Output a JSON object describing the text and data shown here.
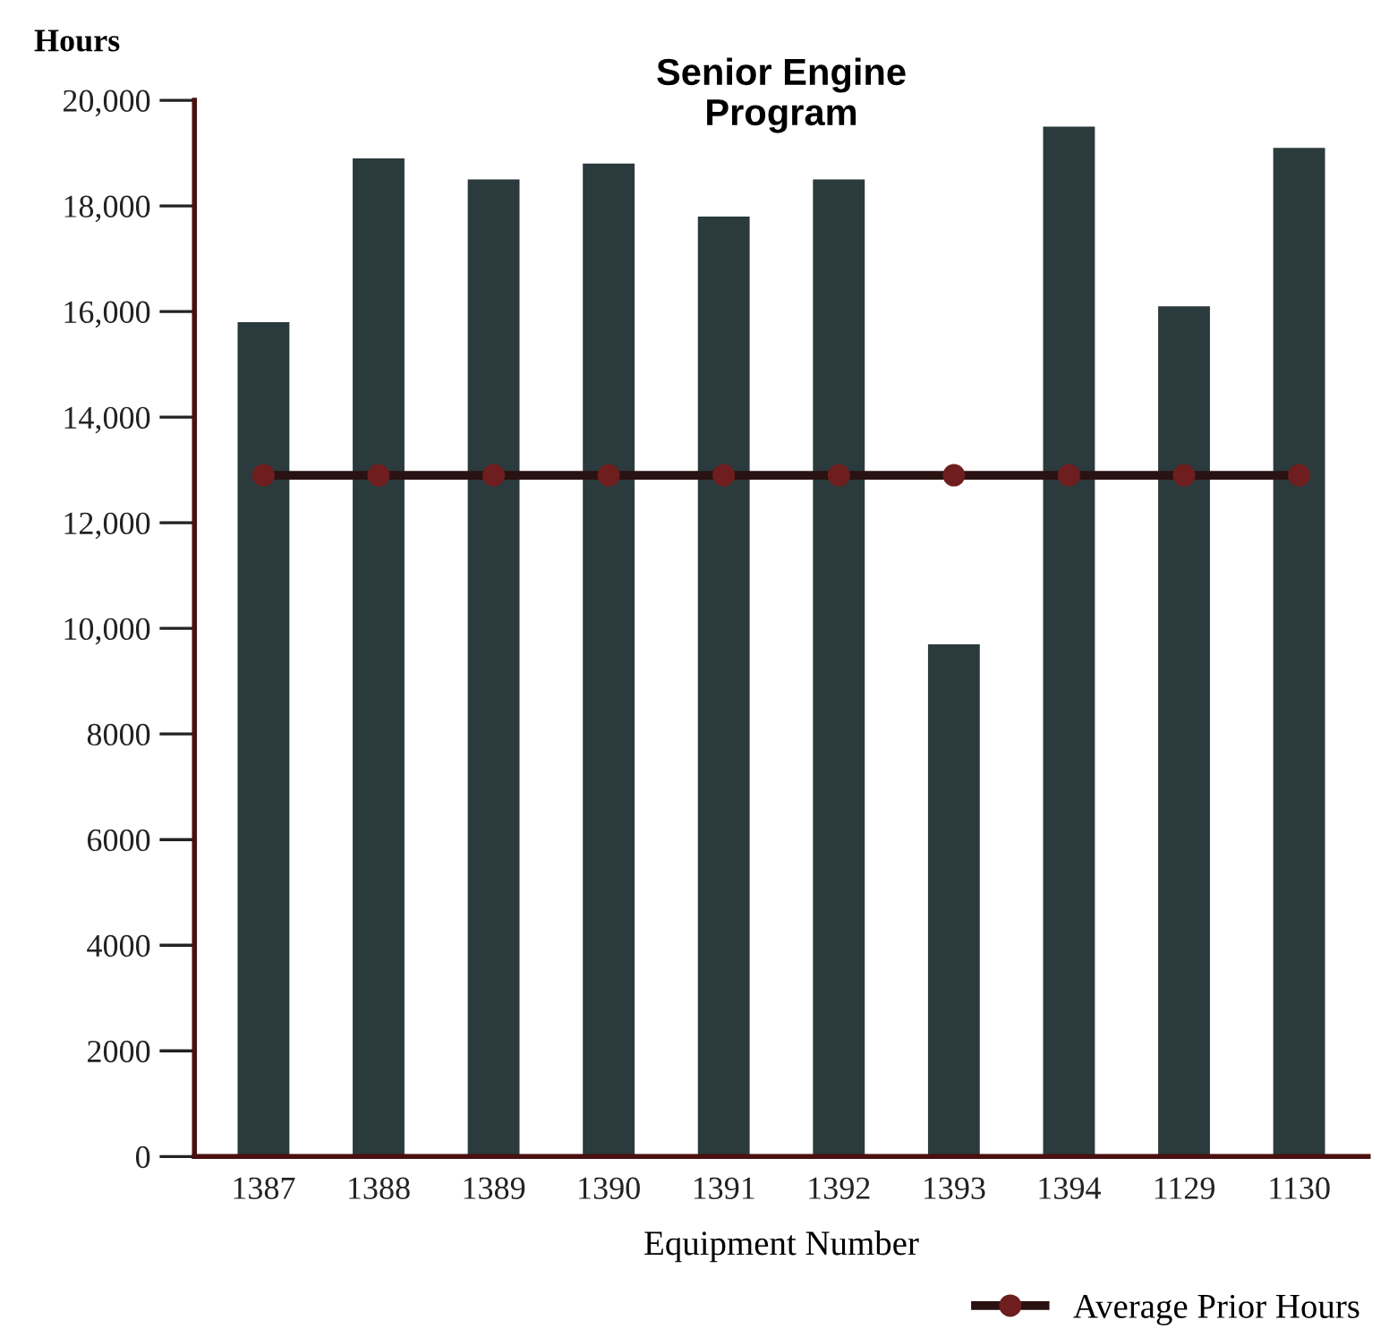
{
  "chart_data": {
    "type": "bar",
    "title": "Senior Engine\nProgram",
    "xlabel": "Equipment Number",
    "ylabel": "Hours",
    "categories": [
      "1387",
      "1388",
      "1389",
      "1390",
      "1391",
      "1392",
      "1393",
      "1394",
      "1129",
      "1130"
    ],
    "series": [
      {
        "color": "#2b3a3c",
        "values": [
          15800,
          18900,
          18500,
          18800,
          17800,
          18500,
          9700,
          19500,
          16100,
          19100
        ]
      },
      {
        "type": "line",
        "name": "Average Prior Hours",
        "color": "#2a1212",
        "marker": "circle",
        "values": [
          12900,
          12900,
          12900,
          12900,
          12900,
          12900,
          12900,
          12900,
          12900,
          12900
        ]
      }
    ],
    "ylim": [
      0,
      20000
    ],
    "yticks": [
      0,
      2000,
      4000,
      6000,
      8000,
      {
        "value": 10000,
        "label": "10,000"
      },
      {
        "value": 12000,
        "label": "12,000"
      },
      {
        "value": 14000,
        "label": "14,000"
      },
      {
        "value": 16000,
        "label": "16,000"
      },
      {
        "value": 18000,
        "label": "18,000"
      },
      {
        "value": 20000,
        "label": "20,000"
      }
    ],
    "grid": false,
    "legend": "bottom right"
  }
}
